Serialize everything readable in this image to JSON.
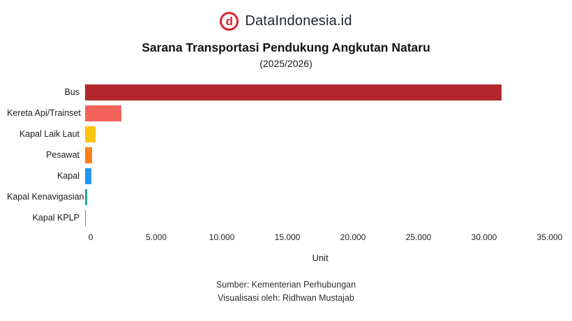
{
  "header": {
    "brand": "DataIndonesia.id"
  },
  "chart_data": {
    "type": "bar",
    "orientation": "horizontal",
    "title": "Sarana Transportasi Pendukung Angkutan Nataru",
    "subtitle": "(2025/2026)",
    "categories": [
      "Bus",
      "Kereta Api/Trainset",
      "Kapal Laik Laut",
      "Pesawat",
      "Kapal",
      "Kapal Kenavigasian",
      "Kapal KPLP"
    ],
    "values": [
      31400,
      2750,
      800,
      550,
      450,
      150,
      50
    ],
    "bar_colors": [
      "#b2262e",
      "#f4645c",
      "#ffc20e",
      "#fd7e14",
      "#2196f3",
      "#26a69a",
      "#7f7f7f"
    ],
    "xlabel": "Unit",
    "xlim": [
      0,
      35000
    ],
    "x_ticks": [
      0,
      5000,
      10000,
      15000,
      20000,
      25000,
      30000,
      35000
    ],
    "x_tick_labels": [
      "0",
      "5.000",
      "10.000",
      "15.000",
      "20.000",
      "25.000",
      "30.000",
      "35.000"
    ],
    "grid": false,
    "legend": false
  },
  "footer": {
    "source": "Sumber: Kementerian Perhubungan",
    "credit": "Visualisasi oleh: Ridhwan Mustajab"
  },
  "colors": {
    "accent_red": "#d7262c",
    "text_dark": "#111111"
  },
  "logo": {
    "letter": "d"
  }
}
